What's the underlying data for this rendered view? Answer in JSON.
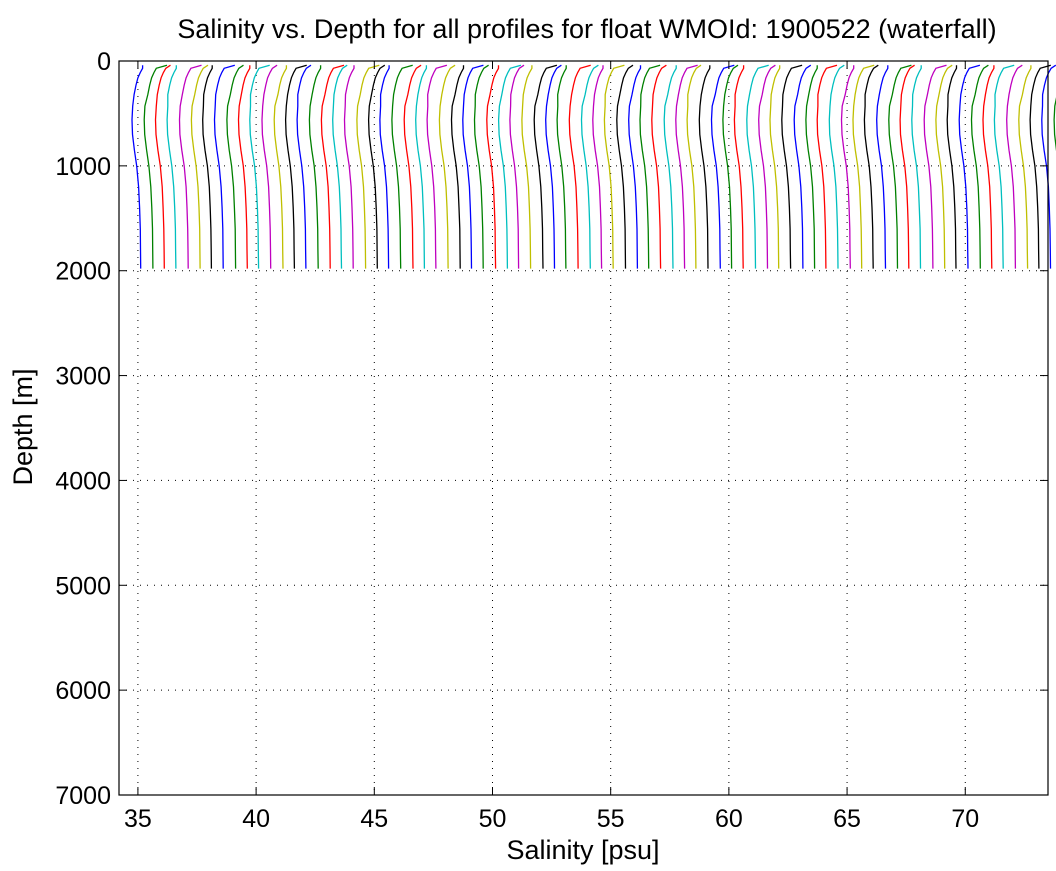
{
  "chart_data": {
    "type": "line",
    "title": "Salinity vs. Depth for all profiles for float WMOId: 1900522 (waterfall)",
    "xlabel": "Salinity [psu]",
    "ylabel": "Depth [m]",
    "xlim": [
      34.2,
      73.5
    ],
    "ylim": [
      0,
      7000
    ],
    "y_reversed": true,
    "grid": true,
    "x_ticks": [
      35,
      40,
      45,
      50,
      55,
      60,
      65,
      70
    ],
    "y_ticks": [
      0,
      1000,
      2000,
      3000,
      4000,
      5000,
      6000,
      7000
    ],
    "colors": [
      "#0000ff",
      "#008000",
      "#ff0000",
      "#00bfbf",
      "#bf00bf",
      "#bfbf00",
      "#000000"
    ],
    "waterfall": {
      "profile_count": 80,
      "offset_per_profile_psu": 0.5,
      "first_profile_deep_salinity": 35.1,
      "max_depth_m": 1980
    },
    "series": [
      {
        "x": [
          35.0,
          35.1,
          35.05,
          34.85,
          34.78,
          34.82,
          34.95,
          35.05,
          35.1,
          35.12
        ],
        "y": [
          40,
          120,
          250,
          400,
          600,
          800,
          1000,
          1300,
          1600,
          1980
        ]
      },
      {
        "x": [
          72.95,
          73.2,
          72.9,
          72.55,
          72.25,
          72.1,
          72.12,
          72.18,
          72.22,
          72.25
        ],
        "y": [
          40,
          120,
          250,
          400,
          600,
          800,
          1000,
          1300,
          1600,
          1980
        ]
      }
    ]
  }
}
